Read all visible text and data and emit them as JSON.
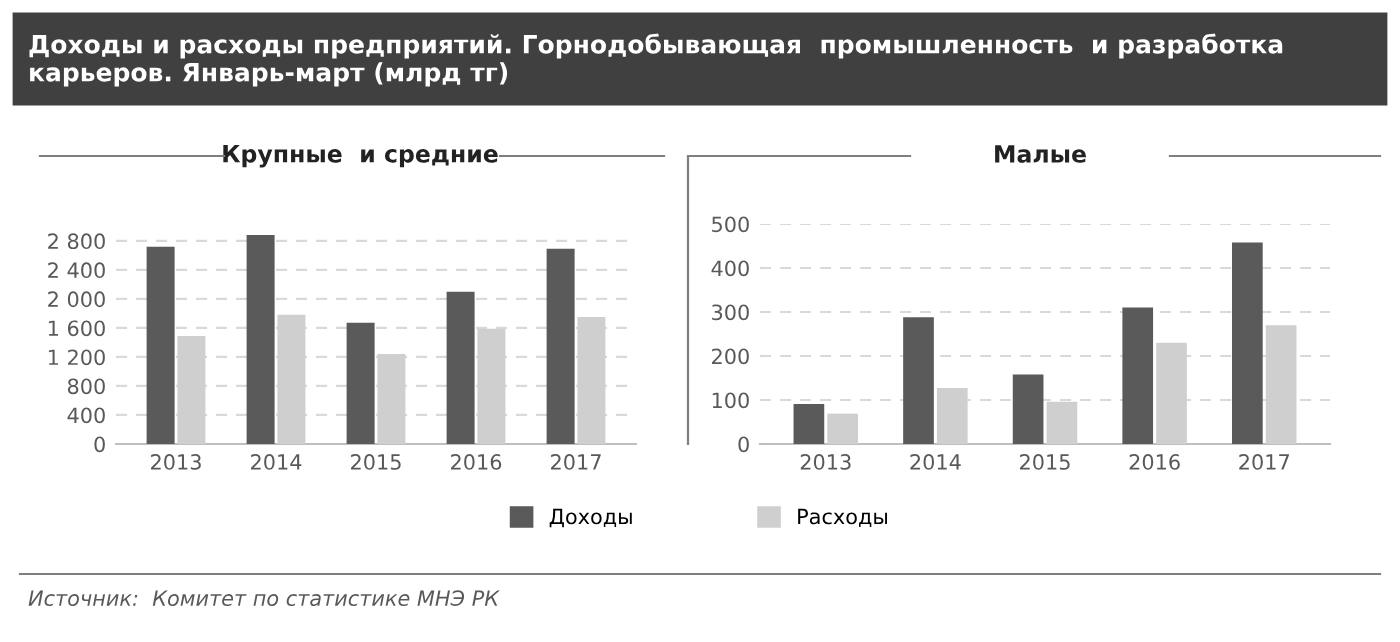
{
  "chart_data": [
    {
      "type": "bar",
      "title": "Доходы и расходы предприятий. Горнодобывающая  промышленность  и разработка карьеров. Январь-март (млрд тг)",
      "subtitle": "Крупные  и средние",
      "categories": [
        "2013",
        "2014",
        "2015",
        "2016",
        "2017"
      ],
      "series": [
        {
          "name": "Доходы",
          "color": "#5a5a5a",
          "values": [
            2720,
            2880,
            1670,
            2100,
            2690
          ]
        },
        {
          "name": "Расходы",
          "color": "#cfcfcf",
          "values": [
            1490,
            1780,
            1240,
            1590,
            1750
          ]
        }
      ],
      "ylim": [
        0,
        2950
      ],
      "yticks": [
        0,
        400,
        800,
        {
          "value": 1200,
          "label": "1 200"
        },
        {
          "value": 1600,
          "label": "1 600"
        },
        {
          "value": 2000,
          "label": "2 000"
        },
        {
          "value": 2400,
          "label": "2 400"
        },
        {
          "value": 2800,
          "label": "2 800"
        }
      ],
      "grid": "y",
      "legend": "bottom",
      "annotations": [
        "Источник:  Комитет по статистике МНЭ РК"
      ]
    },
    {
      "type": "bar",
      "subtitle": "Малые",
      "categories": [
        "2013",
        "2014",
        "2015",
        "2016",
        "2017"
      ],
      "series": [
        {
          "name": "Доходы",
          "color": "#5a5a5a",
          "values": [
            91,
            288,
            158,
            310,
            458
          ]
        },
        {
          "name": "Расходы",
          "color": "#cfcfcf",
          "values": [
            69,
            127,
            96,
            230,
            270
          ]
        }
      ],
      "ylim": [
        0,
        500
      ],
      "yticks": [
        0,
        100,
        200,
        300,
        400,
        500
      ],
      "grid": "y",
      "legend": "bottom"
    }
  ]
}
